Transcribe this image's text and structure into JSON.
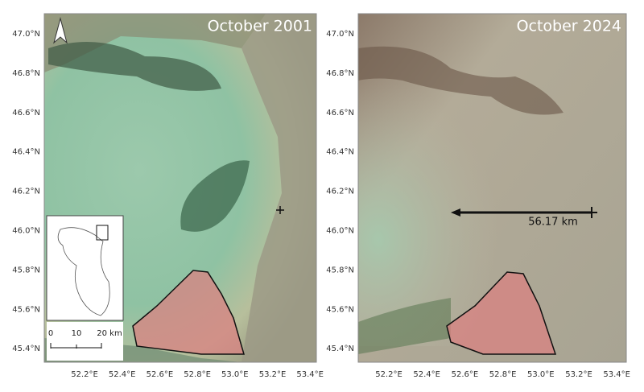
{
  "panels": [
    {
      "title": "October 2001",
      "lat_labels": [
        "47.0°N",
        "46.8°N",
        "46.6°N",
        "46.4°N",
        "46.2°N",
        "46.0°N",
        "45.8°N",
        "45.6°N",
        "45.4°N"
      ],
      "lon_labels": [
        "52.2°E",
        "52.4°E",
        "52.6°E",
        "52.8°E",
        "53.0°E",
        "53.2°E",
        "53.4°E"
      ]
    },
    {
      "title": "October 2024",
      "lat_labels": [
        "47.0°N",
        "46.8°N",
        "46.6°N",
        "46.4°N",
        "46.2°N",
        "46.0°N",
        "45.8°N",
        "45.6°N",
        "45.4°N"
      ],
      "lon_labels": [
        "52.2°E",
        "52.4°E",
        "52.6°E",
        "52.8°E",
        "53.0°E",
        "53.2°E",
        "53.4°E"
      ]
    }
  ],
  "scale_bar": {
    "labels": [
      "0",
      "10",
      "20 km"
    ]
  },
  "measurement": {
    "label": "56.17 km"
  }
}
